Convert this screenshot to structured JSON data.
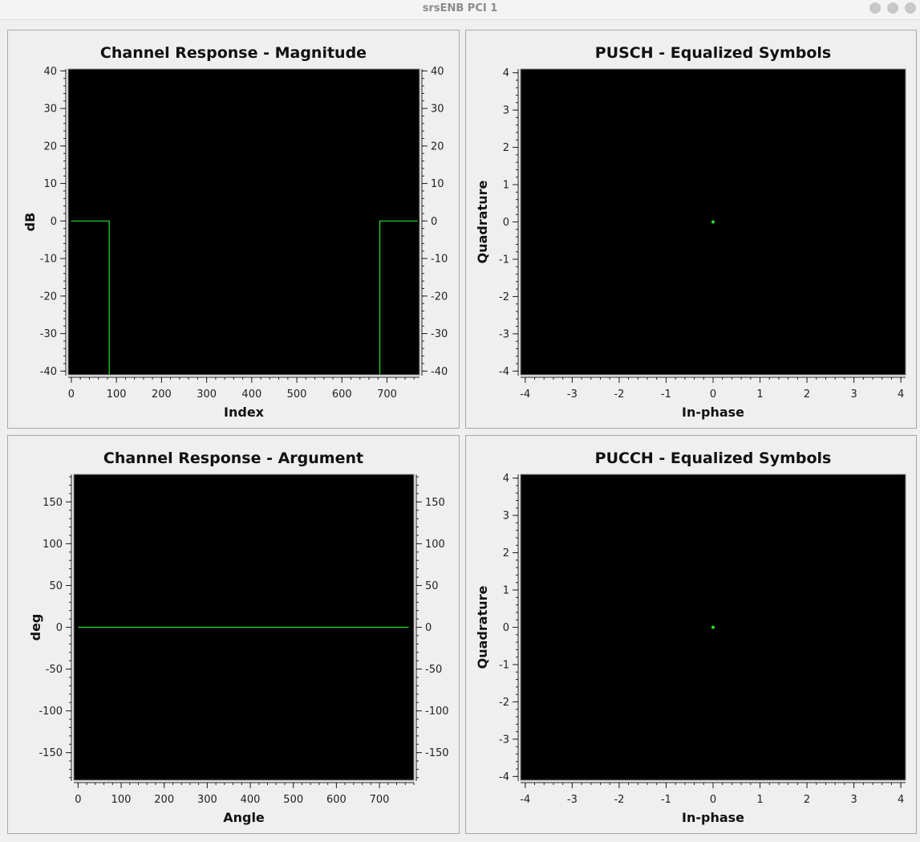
{
  "window": {
    "title": "srsENB PCI 1"
  },
  "colors": {
    "trace": "#27e227",
    "background": "#000000",
    "panel": "#efefef"
  },
  "chart_data": [
    {
      "id": "magnitude",
      "type": "line",
      "title": "Channel Response - Magnitude",
      "xlabel": "Index",
      "ylabel": "dB",
      "xlim": [
        -7,
        772
      ],
      "ylim": [
        -41,
        40.5
      ],
      "xticks": [
        0,
        100,
        200,
        300,
        400,
        500,
        600,
        700
      ],
      "yticks": [
        -40,
        -30,
        -20,
        -10,
        0,
        10,
        20,
        30,
        40
      ],
      "right_axis": true,
      "series": [
        {
          "x": [
            0,
            84,
            84
          ],
          "y": [
            0,
            0,
            -41
          ]
        },
        {
          "x": [
            684,
            684,
            768
          ],
          "y": [
            -41,
            0,
            0
          ]
        }
      ]
    },
    {
      "id": "pusch",
      "type": "scatter",
      "title": "PUSCH - Equalized Symbols",
      "xlabel": "In-phase",
      "ylabel": "Quadrature",
      "xlim": [
        -4.1,
        4.1
      ],
      "ylim": [
        -4.1,
        4.1
      ],
      "xticks": [
        -4,
        -3,
        -2,
        -1,
        0,
        1,
        2,
        3,
        4
      ],
      "yticks": [
        -4,
        -3,
        -2,
        -1,
        0,
        1,
        2,
        3,
        4
      ],
      "right_axis": false,
      "points": [
        {
          "x": 0,
          "y": 0
        }
      ]
    },
    {
      "id": "argument",
      "type": "line",
      "title": "Channel Response - Argument",
      "xlabel": "Angle",
      "ylabel": "deg",
      "xlim": [
        -10,
        780
      ],
      "ylim": [
        -183,
        183
      ],
      "xticks": [
        0,
        100,
        200,
        300,
        400,
        500,
        600,
        700
      ],
      "yticks": [
        -150,
        -100,
        -50,
        0,
        50,
        100,
        150
      ],
      "right_axis": true,
      "series": [
        {
          "x": [
            0,
            768
          ],
          "y": [
            0,
            0
          ]
        }
      ]
    },
    {
      "id": "pucch",
      "type": "scatter",
      "title": "PUCCH - Equalized Symbols",
      "xlabel": "In-phase",
      "ylabel": "Quadrature",
      "xlim": [
        -4.1,
        4.1
      ],
      "ylim": [
        -4.1,
        4.1
      ],
      "xticks": [
        -4,
        -3,
        -2,
        -1,
        0,
        1,
        2,
        3,
        4
      ],
      "yticks": [
        -4,
        -3,
        -2,
        -1,
        0,
        1,
        2,
        3,
        4
      ],
      "right_axis": false,
      "points": [
        {
          "x": 0,
          "y": 0
        }
      ]
    }
  ]
}
